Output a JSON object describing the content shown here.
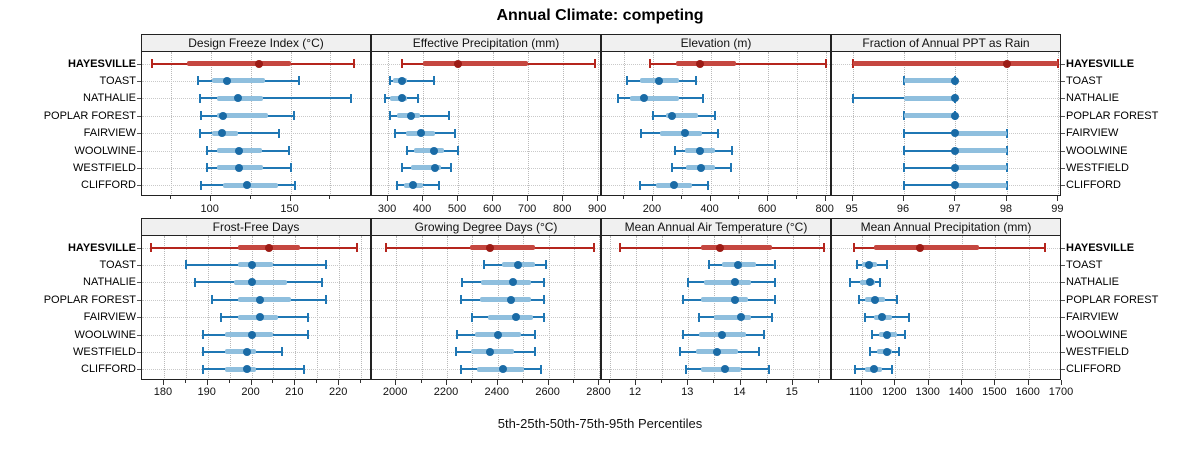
{
  "title": "Annual Climate: competing",
  "caption": "5th-25th-50th-75th-95th Percentiles",
  "colors": {
    "highlight_line": "#b5251d",
    "highlight_bar": "#c54740",
    "highlight_dot": "#9c1b15",
    "normal_line": "#1f77b4",
    "normal_bar": "#8fbfde",
    "normal_dot": "#1a6ba6",
    "strip_bg": "#f0f0f0",
    "grid": "#b9b9b9"
  },
  "chart_data": {
    "type": "dotplot-intervals",
    "title": "Annual Climate: competing",
    "caption": "5th-25th-50th-75th-95th Percentiles",
    "percentiles": [
      "5th",
      "25th",
      "50th",
      "75th",
      "95th"
    ],
    "locations": [
      "HAYESVILLE",
      "TOAST",
      "NATHALIE",
      "POPLAR FOREST",
      "FAIRVIEW",
      "WOOLWINE",
      "WESTFIELD",
      "CLIFFORD"
    ],
    "highlight_location": "HAYESVILLE",
    "grid": true,
    "panels": [
      {
        "label": "Design Freeze Index (°C)",
        "row": 0,
        "col": 0,
        "domain": [
          57,
          201
        ],
        "ticks": [
          100,
          150
        ],
        "minor_ticks": [
          75,
          125,
          175
        ],
        "values": [
          [
            63,
            85,
            130,
            150,
            190
          ],
          [
            92,
            101,
            110,
            134,
            155
          ],
          [
            93,
            104,
            117,
            133,
            188
          ],
          [
            94,
            104,
            108,
            136,
            152
          ],
          [
            93,
            101,
            107,
            117,
            143
          ],
          [
            98,
            104,
            118,
            132,
            149
          ],
          [
            98,
            104,
            118,
            133,
            150
          ],
          [
            94,
            108,
            123,
            142,
            153
          ]
        ]
      },
      {
        "label": "Effective Precipitation (mm)",
        "row": 0,
        "col": 1,
        "domain": [
          254,
          911
        ],
        "ticks": [
          300,
          400,
          500,
          600,
          700,
          800,
          900
        ],
        "minor_ticks": [],
        "values": [
          [
            340,
            400,
            500,
            700,
            890
          ],
          [
            305,
            315,
            340,
            355,
            430
          ],
          [
            290,
            305,
            340,
            355,
            385
          ],
          [
            305,
            325,
            365,
            390,
            475
          ],
          [
            320,
            350,
            395,
            435,
            490
          ],
          [
            355,
            375,
            430,
            460,
            500
          ],
          [
            340,
            365,
            435,
            450,
            480
          ],
          [
            325,
            345,
            370,
            400,
            445
          ]
        ]
      },
      {
        "label": "Elevation (m)",
        "row": 0,
        "col": 2,
        "domain": [
          23,
          822
        ],
        "ticks": [
          200,
          400,
          600,
          800
        ],
        "minor_ticks": [
          100,
          300,
          500,
          700
        ],
        "values": [
          [
            190,
            280,
            365,
            490,
            800
          ],
          [
            110,
            155,
            220,
            290,
            350
          ],
          [
            80,
            120,
            170,
            290,
            375
          ],
          [
            200,
            245,
            265,
            355,
            415
          ],
          [
            160,
            225,
            310,
            370,
            425
          ],
          [
            278,
            310,
            365,
            415,
            473
          ],
          [
            265,
            315,
            368,
            415,
            470
          ],
          [
            155,
            210,
            273,
            335,
            390
          ]
        ]
      },
      {
        "label": "Fraction of Annual PPT as Rain",
        "row": 0,
        "col": 3,
        "domain": [
          94.6,
          99.07
        ],
        "ticks": [
          95,
          96,
          97,
          98,
          99
        ],
        "minor_ticks": [],
        "values": [
          [
            95,
            95,
            98,
            99,
            99
          ],
          [
            96,
            96,
            97,
            97,
            97
          ],
          [
            95,
            96,
            97,
            97,
            97
          ],
          [
            96,
            96,
            97,
            97,
            97
          ],
          [
            96,
            97,
            97,
            98,
            98
          ],
          [
            96,
            97,
            97,
            98,
            98
          ],
          [
            96,
            97,
            97,
            98,
            98
          ],
          [
            96,
            97,
            97,
            98,
            98
          ]
        ]
      },
      {
        "label": "Frost-Free Days",
        "row": 1,
        "col": 0,
        "domain": [
          175,
          227.5
        ],
        "ticks": [
          180,
          190,
          200,
          210,
          220
        ],
        "minor_ticks": [
          185,
          195,
          205,
          215,
          225
        ],
        "values": [
          [
            177,
            197,
            204,
            211,
            224
          ],
          [
            185,
            197,
            200,
            205,
            217
          ],
          [
            187,
            196,
            200,
            208,
            216
          ],
          [
            191,
            197,
            202,
            209,
            217
          ],
          [
            193,
            197,
            202,
            206,
            213
          ],
          [
            189,
            194,
            200,
            205,
            213
          ],
          [
            189,
            194,
            199,
            201,
            207
          ],
          [
            189,
            194,
            199,
            201,
            212
          ]
        ]
      },
      {
        "label": "Growing Degree Days (°C)",
        "row": 1,
        "col": 1,
        "domain": [
          1905,
          2810
        ],
        "ticks": [
          2000,
          2200,
          2400,
          2600,
          2800
        ],
        "minor_ticks": [
          2100,
          2300,
          2500,
          2700
        ],
        "values": [
          [
            1960,
            2290,
            2370,
            2545,
            2780
          ],
          [
            2345,
            2415,
            2480,
            2545,
            2590
          ],
          [
            2260,
            2335,
            2460,
            2530,
            2580
          ],
          [
            2255,
            2330,
            2450,
            2530,
            2580
          ],
          [
            2300,
            2360,
            2470,
            2540,
            2580
          ],
          [
            2240,
            2310,
            2400,
            2490,
            2545
          ],
          [
            2235,
            2295,
            2370,
            2465,
            2545
          ],
          [
            2255,
            2320,
            2420,
            2505,
            2570
          ]
        ]
      },
      {
        "label": "Mean Annual Air Temperature (°C)",
        "row": 1,
        "col": 2,
        "domain": [
          11.35,
          15.75
        ],
        "ticks": [
          12,
          13,
          14,
          15
        ],
        "minor_ticks": [
          11.5,
          12.5,
          13.5,
          14.5,
          15.5
        ],
        "values": [
          [
            11.7,
            13.25,
            13.6,
            14.6,
            15.6
          ],
          [
            13.4,
            13.65,
            13.95,
            14.3,
            14.65
          ],
          [
            13.0,
            13.3,
            13.9,
            14.2,
            14.65
          ],
          [
            12.9,
            13.25,
            13.9,
            14.15,
            14.65
          ],
          [
            13.2,
            13.5,
            14.0,
            14.2,
            14.6
          ],
          [
            12.9,
            13.2,
            13.65,
            14.1,
            14.45
          ],
          [
            12.85,
            13.15,
            13.55,
            13.95,
            14.35
          ],
          [
            12.95,
            13.25,
            13.7,
            14.0,
            14.55
          ]
        ]
      },
      {
        "label": "Mean Annual Precipitation (mm)",
        "row": 1,
        "col": 3,
        "domain": [
          1010,
          1700
        ],
        "ticks": [
          1100,
          1200,
          1300,
          1400,
          1500,
          1600,
          1700
        ],
        "minor_ticks": [],
        "values": [
          [
            1075,
            1135,
            1275,
            1450,
            1650
          ],
          [
            1085,
            1100,
            1120,
            1145,
            1175
          ],
          [
            1065,
            1095,
            1125,
            1140,
            1155
          ],
          [
            1090,
            1110,
            1140,
            1170,
            1205
          ],
          [
            1110,
            1135,
            1160,
            1190,
            1240
          ],
          [
            1130,
            1150,
            1175,
            1205,
            1230
          ],
          [
            1125,
            1145,
            1175,
            1190,
            1210
          ],
          [
            1080,
            1110,
            1135,
            1160,
            1190
          ]
        ]
      }
    ]
  }
}
